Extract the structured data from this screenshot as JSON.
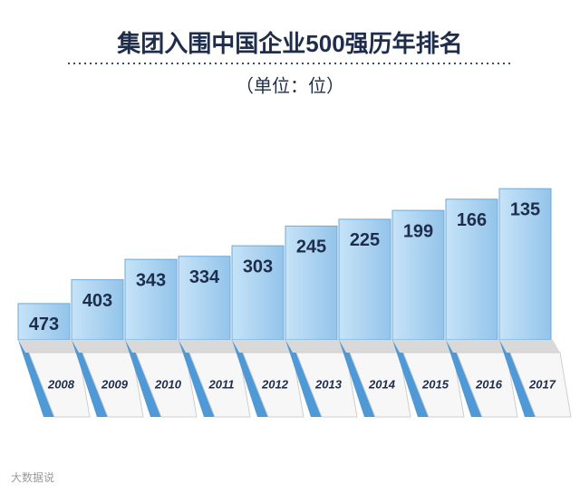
{
  "chart_data": {
    "type": "bar",
    "title": "集团入围中国企业500强历年排名",
    "subtitle": "（单位：位）",
    "watermark": "大数据说",
    "categories": [
      "2008",
      "2009",
      "2010",
      "2011",
      "2012",
      "2013",
      "2014",
      "2015",
      "2016",
      "2017"
    ],
    "values": [
      473,
      403,
      343,
      334,
      303,
      245,
      225,
      199,
      166,
      135
    ],
    "color": "#a9d3f2",
    "ylim": [
      580,
      100
    ],
    "grid": false
  }
}
